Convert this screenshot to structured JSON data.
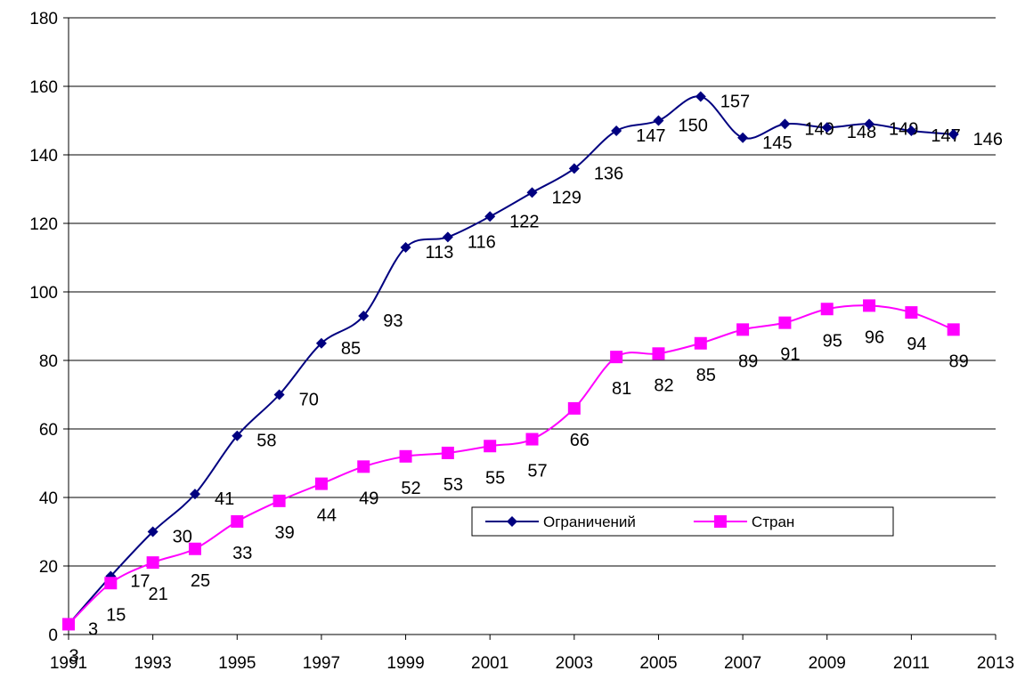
{
  "chart_data": {
    "type": "line",
    "x": [
      1991,
      1992,
      1993,
      1994,
      1995,
      1996,
      1997,
      1998,
      1999,
      2000,
      2001,
      2002,
      2003,
      2004,
      2005,
      2006,
      2007,
      2008,
      2009,
      2010,
      2011,
      2012
    ],
    "series": [
      {
        "name": "Ограничений",
        "color": "#000080",
        "marker": "diamond",
        "values": [
          3,
          17,
          30,
          41,
          58,
          70,
          85,
          93,
          113,
          116,
          122,
          129,
          136,
          147,
          150,
          157,
          145,
          149,
          148,
          149,
          147,
          146
        ]
      },
      {
        "name": "Стран",
        "color": "#ff00ff",
        "marker": "square",
        "values": [
          3,
          15,
          21,
          25,
          33,
          39,
          44,
          49,
          52,
          53,
          55,
          57,
          66,
          81,
          82,
          85,
          89,
          91,
          95,
          96,
          94,
          89
        ]
      }
    ],
    "xlim": [
      1991,
      2013
    ],
    "xticks": [
      1991,
      1993,
      1995,
      1997,
      1999,
      2001,
      2003,
      2005,
      2007,
      2009,
      2011,
      2013
    ],
    "ylim": [
      0,
      180
    ],
    "yticks": [
      0,
      20,
      40,
      60,
      80,
      100,
      120,
      140,
      160,
      180
    ],
    "grid": true,
    "legend": "inside"
  }
}
